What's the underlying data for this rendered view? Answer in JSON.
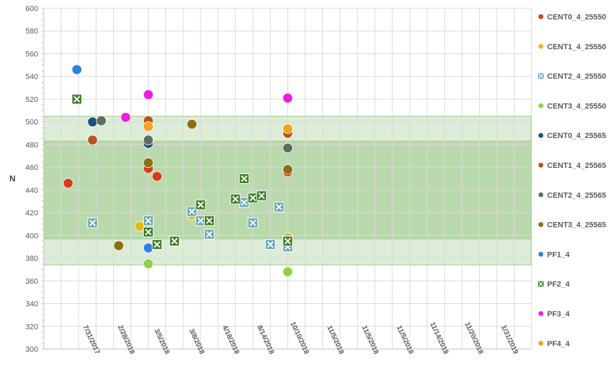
{
  "chart_data": {
    "type": "scatter",
    "title": "",
    "xlabel": "",
    "ylabel": "N",
    "ylim": [
      300,
      600
    ],
    "ytick_step": 20,
    "grid": true,
    "legend_position": "right",
    "x_categories": [
      "7/31/2017",
      "2/28/2018",
      "3/5/2018",
      "3/8/2018",
      "4/18/2018",
      "8/14/2018",
      "10/10/2018",
      "11/5/2018",
      "11/5/2018",
      "11/5/2018",
      "11/14/2018",
      "11/20/2018",
      "1/31/2019"
    ],
    "bands": [
      {
        "y0": 374,
        "y1": 505,
        "color": "#d9ead3"
      },
      {
        "y0": 397,
        "y1": 483,
        "color": "#b6d7a8"
      }
    ],
    "series": [
      {
        "name": "CENT0_4_25550",
        "marker": "circle",
        "color": "#d83b1c",
        "points": [
          [
            1.4,
            446
          ],
          [
            6.0,
            459
          ],
          [
            6.5,
            452
          ],
          [
            14.0,
            456
          ]
        ]
      },
      {
        "name": "CENT1_4_25550",
        "marker": "circle",
        "color": "#e6b814",
        "points": [
          [
            5.5,
            408
          ],
          [
            8.5,
            418
          ],
          [
            14.0,
            398
          ]
        ]
      },
      {
        "name": "CENT2_4_25550",
        "marker": "box",
        "color": "#6aa9b6",
        "points": [
          [
            2.8,
            411
          ],
          [
            6.0,
            413
          ],
          [
            8.5,
            421
          ],
          [
            9.0,
            413
          ],
          [
            9.5,
            401
          ],
          [
            11.5,
            429
          ],
          [
            12.0,
            411
          ],
          [
            13.0,
            392
          ],
          [
            13.5,
            425
          ],
          [
            14.0,
            390
          ]
        ]
      },
      {
        "name": "CENT3_4_25550",
        "marker": "circle",
        "color": "#8fcf4a",
        "points": [
          [
            6.0,
            375
          ],
          [
            14.0,
            368
          ]
        ]
      },
      {
        "name": "CENT0_4_25565",
        "marker": "circle",
        "color": "#1f4e79",
        "points": [
          [
            2.8,
            500
          ],
          [
            6.0,
            481
          ]
        ]
      },
      {
        "name": "CENT1_4_25565",
        "marker": "circle",
        "color": "#b5541c",
        "points": [
          [
            2.8,
            484
          ],
          [
            6.0,
            501
          ],
          [
            14.0,
            490
          ]
        ]
      },
      {
        "name": "CENT2_4_25565",
        "marker": "circle",
        "color": "#5f6d5e",
        "points": [
          [
            3.3,
            501
          ],
          [
            6.0,
            484
          ],
          [
            14.0,
            477
          ]
        ]
      },
      {
        "name": "CENT3_4_25565",
        "marker": "circle",
        "color": "#8c7012",
        "points": [
          [
            4.3,
            391
          ],
          [
            6.0,
            464
          ],
          [
            8.5,
            498
          ],
          [
            14.0,
            458
          ]
        ]
      },
      {
        "name": "PF1_4",
        "marker": "circle",
        "color": "#2f7fe8",
        "points": [
          [
            1.9,
            546
          ],
          [
            6.0,
            389
          ]
        ]
      },
      {
        "name": "PF2_4",
        "marker": "box",
        "color": "#3f7f2a",
        "points": [
          [
            1.9,
            520
          ],
          [
            6.0,
            403
          ],
          [
            6.5,
            392
          ],
          [
            7.5,
            395
          ],
          [
            9.0,
            427
          ],
          [
            9.5,
            413
          ],
          [
            11.0,
            432
          ],
          [
            11.5,
            450
          ],
          [
            12.0,
            433
          ],
          [
            12.5,
            435
          ],
          [
            14.0,
            395
          ]
        ]
      },
      {
        "name": "PF3_4",
        "marker": "circle",
        "color": "#ee1ce0",
        "points": [
          [
            4.7,
            504
          ],
          [
            6.0,
            524
          ],
          [
            14.0,
            521
          ]
        ]
      },
      {
        "name": "PF4_4",
        "marker": "circle",
        "color": "#f2a21c",
        "points": [
          [
            6.0,
            496
          ],
          [
            14.0,
            494
          ]
        ]
      }
    ]
  }
}
